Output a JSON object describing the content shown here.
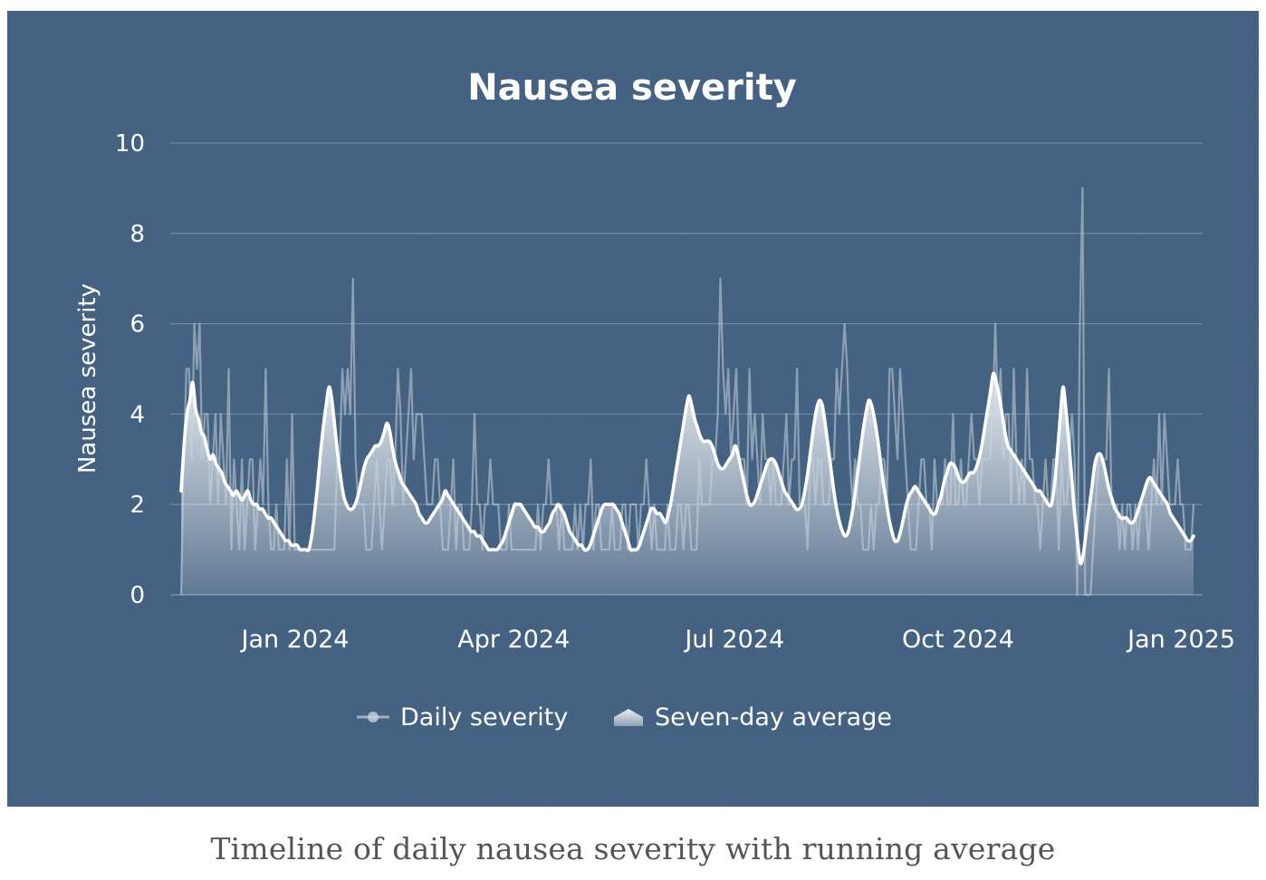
{
  "colors": {
    "background": "#3f5d7e",
    "daily_line": "#c9d3de",
    "average_line": "#ffffff",
    "grid": "#8aa0b8",
    "caption": "#555555"
  },
  "caption": "Timeline of daily nausea severity with running average",
  "chart_data": {
    "type": "line",
    "title": "Nausea severity",
    "xlabel": "",
    "ylabel": "Nausea severity",
    "ylim": [
      0,
      10
    ],
    "yticks": [
      0,
      2,
      4,
      6,
      8,
      10
    ],
    "xticks": [
      {
        "label": "Jan 2024",
        "day": 47
      },
      {
        "label": "Apr 2024",
        "day": 137
      },
      {
        "label": "Jul 2024",
        "day": 228
      },
      {
        "label": "Oct 2024",
        "day": 320
      },
      {
        "label": "Jan 2025",
        "day": 412
      }
    ],
    "x_range_days": [
      0,
      417
    ],
    "x_unit": "day index starting 2023-11-15",
    "legend": {
      "position": "bottom-center",
      "entries": [
        "Daily severity",
        "Seven-day average"
      ]
    },
    "grid": true,
    "series": [
      {
        "name": "Daily severity",
        "values": [
          0,
          3,
          5,
          5,
          3,
          6,
          5,
          6,
          3,
          4,
          4,
          2,
          3,
          4,
          2,
          4,
          3,
          2,
          5,
          1,
          3,
          2,
          1,
          3,
          1,
          2,
          3,
          3,
          1,
          2,
          3,
          2,
          5,
          2,
          1,
          1,
          2,
          1,
          1,
          1,
          3,
          1,
          4,
          1,
          1,
          1,
          1,
          1,
          1,
          1,
          1,
          1,
          1,
          1,
          1,
          1,
          1,
          1,
          1,
          3,
          3,
          5,
          4,
          5,
          4,
          7,
          3,
          2,
          2,
          2,
          1,
          1,
          1,
          2,
          3,
          2,
          1,
          2,
          3,
          3,
          2,
          3,
          5,
          4,
          2,
          3,
          4,
          5,
          3,
          4,
          4,
          4,
          3,
          2,
          2,
          2,
          3,
          3,
          2,
          1,
          1,
          1,
          2,
          3,
          1,
          2,
          2,
          1,
          1,
          1,
          2,
          4,
          2,
          2,
          1,
          2,
          2,
          3,
          2,
          2,
          2,
          1,
          1,
          1,
          2,
          1,
          1,
          1,
          1,
          1,
          1,
          1,
          1,
          1,
          1,
          2,
          1,
          2,
          2,
          3,
          2,
          2,
          2,
          1,
          2,
          1,
          1,
          1,
          1,
          2,
          1,
          2,
          1,
          2,
          2,
          3,
          1,
          2,
          2,
          1,
          1,
          1,
          1,
          2,
          1,
          1,
          1,
          2,
          2,
          1,
          2,
          2,
          2,
          1,
          2,
          2,
          3,
          2,
          1,
          2,
          1,
          1,
          1,
          1,
          2,
          1,
          1,
          1,
          2,
          2,
          1,
          2,
          2,
          1,
          1,
          1,
          3,
          2,
          2,
          2,
          2,
          3,
          3,
          4,
          7,
          5,
          4,
          5,
          3,
          4,
          5,
          3,
          3,
          3,
          2,
          5,
          3,
          4,
          3,
          2,
          4,
          3,
          3,
          2,
          3,
          2,
          2,
          2,
          3,
          4,
          2,
          3,
          3,
          5,
          2,
          2,
          2,
          1,
          3,
          3,
          2,
          3,
          3,
          2,
          2,
          2,
          3,
          3,
          5,
          4,
          5,
          6,
          5,
          3,
          2,
          3,
          2,
          2,
          1,
          1,
          1,
          2,
          1,
          2,
          2,
          3,
          3,
          2,
          5,
          5,
          4,
          3,
          5,
          4,
          3,
          2,
          1,
          1,
          1,
          2,
          3,
          3,
          2,
          2,
          1,
          3,
          2,
          2,
          2,
          3,
          2,
          2,
          4,
          2,
          2,
          3,
          2,
          2,
          3,
          4,
          3,
          3,
          2,
          3,
          3,
          3,
          3,
          4,
          6,
          4,
          5,
          3,
          4,
          4,
          2,
          5,
          3,
          2,
          3,
          2,
          5,
          3,
          3,
          2,
          2,
          1,
          2,
          3,
          2,
          2,
          3,
          3,
          1,
          3,
          2,
          2,
          3,
          4,
          3,
          0,
          6,
          9,
          0,
          0,
          0,
          1,
          2,
          3,
          3,
          3,
          3,
          5,
          2,
          2,
          2,
          1,
          2,
          1,
          2,
          2,
          1,
          2,
          1,
          2,
          2,
          2,
          1,
          2,
          3,
          2,
          4,
          2,
          4,
          3,
          2,
          2,
          2,
          3,
          2,
          2,
          1,
          1,
          1,
          2
        ]
      },
      {
        "name": "Seven-day average",
        "values": [
          2.3,
          3.3,
          4.0,
          4.3,
          4.7,
          4.1,
          3.9,
          3.6,
          3.5,
          3.2,
          3.0,
          3.1,
          2.9,
          2.8,
          2.7,
          2.5,
          2.4,
          2.3,
          2.2,
          2.3,
          2.2,
          2.1,
          2.2,
          2.3,
          2.1,
          2.0,
          2.0,
          1.9,
          1.9,
          1.8,
          1.7,
          1.7,
          1.6,
          1.5,
          1.4,
          1.3,
          1.2,
          1.2,
          1.1,
          1.1,
          1.1,
          1.0,
          1.0,
          1.0,
          1.0,
          1.3,
          1.8,
          2.4,
          3.1,
          3.7,
          4.2,
          4.6,
          4.3,
          3.7,
          3.1,
          2.6,
          2.2,
          2.0,
          1.9,
          1.9,
          2.0,
          2.2,
          2.5,
          2.8,
          3.0,
          3.1,
          3.2,
          3.3,
          3.3,
          3.4,
          3.6,
          3.8,
          3.6,
          3.2,
          2.9,
          2.7,
          2.5,
          2.4,
          2.3,
          2.2,
          2.1,
          2.0,
          1.8,
          1.7,
          1.6,
          1.6,
          1.7,
          1.8,
          1.9,
          2.0,
          2.1,
          2.3,
          2.2,
          2.1,
          2.0,
          1.9,
          1.8,
          1.7,
          1.6,
          1.5,
          1.4,
          1.4,
          1.3,
          1.3,
          1.2,
          1.1,
          1.0,
          1.0,
          1.0,
          1.0,
          1.1,
          1.2,
          1.4,
          1.6,
          1.8,
          2.0,
          2.0,
          2.0,
          1.9,
          1.8,
          1.7,
          1.6,
          1.5,
          1.5,
          1.4,
          1.4,
          1.5,
          1.6,
          1.8,
          1.9,
          2.0,
          1.9,
          1.8,
          1.6,
          1.4,
          1.3,
          1.2,
          1.1,
          1.1,
          1.0,
          1.0,
          1.1,
          1.3,
          1.5,
          1.7,
          1.9,
          2.0,
          2.0,
          2.0,
          2.0,
          1.9,
          1.8,
          1.6,
          1.4,
          1.2,
          1.0,
          1.0,
          1.0,
          1.1,
          1.3,
          1.5,
          1.7,
          1.9,
          1.9,
          1.8,
          1.8,
          1.7,
          1.6,
          1.8,
          2.1,
          2.5,
          2.9,
          3.3,
          3.7,
          4.1,
          4.4,
          4.2,
          3.9,
          3.7,
          3.5,
          3.4,
          3.4,
          3.4,
          3.3,
          3.1,
          2.9,
          2.8,
          2.8,
          2.9,
          3.0,
          3.1,
          3.3,
          3.1,
          2.8,
          2.5,
          2.2,
          2.0,
          2.0,
          2.1,
          2.3,
          2.5,
          2.7,
          2.9,
          3.0,
          3.0,
          2.9,
          2.7,
          2.5,
          2.3,
          2.2,
          2.1,
          2.0,
          1.9,
          1.9,
          2.0,
          2.3,
          2.7,
          3.2,
          3.7,
          4.1,
          4.3,
          4.2,
          3.8,
          3.3,
          2.8,
          2.3,
          1.9,
          1.6,
          1.4,
          1.3,
          1.4,
          1.7,
          2.1,
          2.6,
          3.1,
          3.6,
          4.0,
          4.3,
          4.2,
          3.9,
          3.5,
          3.0,
          2.5,
          2.1,
          1.7,
          1.4,
          1.2,
          1.2,
          1.4,
          1.7,
          2.0,
          2.2,
          2.3,
          2.4,
          2.3,
          2.2,
          2.1,
          2.0,
          1.9,
          1.8,
          1.8,
          2.0,
          2.2,
          2.5,
          2.7,
          2.9,
          2.9,
          2.8,
          2.6,
          2.5,
          2.5,
          2.6,
          2.7,
          2.7,
          2.8,
          3.0,
          3.3,
          3.7,
          4.1,
          4.5,
          4.9,
          4.7,
          4.4,
          4.0,
          3.6,
          3.3,
          3.2,
          3.1,
          3.0,
          2.9,
          2.8,
          2.7,
          2.6,
          2.5,
          2.4,
          2.3,
          2.3,
          2.2,
          2.1,
          2.0,
          2.0,
          2.4,
          3.1,
          3.9,
          4.6,
          4.1,
          3.4,
          2.6,
          1.8,
          1.2,
          0.7,
          0.9,
          1.4,
          1.9,
          2.4,
          2.9,
          3.1,
          3.1,
          2.9,
          2.6,
          2.3,
          2.1,
          1.9,
          1.8,
          1.7,
          1.7,
          1.7,
          1.6,
          1.6,
          1.7,
          1.9,
          2.1,
          2.3,
          2.5,
          2.6,
          2.5,
          2.4,
          2.3,
          2.2,
          2.1,
          2.0,
          1.8,
          1.7,
          1.6,
          1.5,
          1.4,
          1.3,
          1.2,
          1.2,
          1.3
        ]
      }
    ]
  }
}
